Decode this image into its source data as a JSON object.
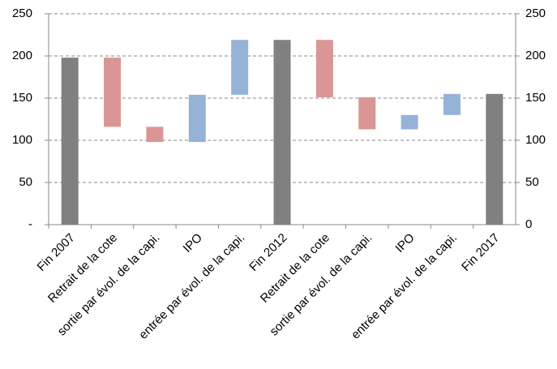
{
  "chart_data": {
    "type": "waterfall",
    "categories": [
      "Fin 2007",
      "Retrait de la cote",
      "sortie par évol. de la capi.",
      "IPO",
      "entrée par évol. de la capi.",
      "Fin 2012",
      "Retrait de la cote",
      "sortie par évol. de la capi.",
      "IPO",
      "entrée par évol. de la capi.",
      "Fin 2017"
    ],
    "values": [
      198,
      -82,
      -18,
      56,
      65,
      219,
      -68,
      -38,
      17,
      25,
      155
    ],
    "bar_types": [
      "total",
      "delta",
      "delta",
      "delta",
      "delta",
      "total",
      "delta",
      "delta",
      "delta",
      "delta",
      "total"
    ],
    "colors": {
      "total": "#808080",
      "decrease": "#d99694",
      "increase": "#95b3d7"
    },
    "ylim": [
      0,
      250
    ],
    "yticks": [
      {
        "value": 0,
        "label": "-"
      },
      50,
      100,
      150,
      200,
      250
    ],
    "y2lim": [
      0,
      250
    ],
    "y2ticks": [
      0,
      50,
      100,
      150,
      200,
      250
    ],
    "grid": true
  }
}
